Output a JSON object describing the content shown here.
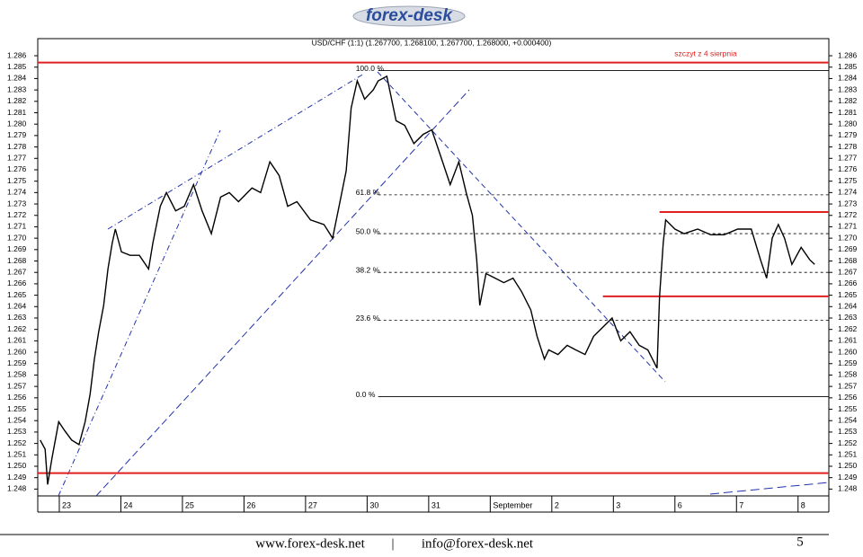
{
  "header": {
    "logo": "forex-desk"
  },
  "chart_data": {
    "type": "line",
    "title": "USD/CHF (1:1) (1.267700, 1.268100, 1.267700, 1.268000, +0.000400)",
    "annotation": "szczyt z 4 sierpnia",
    "color": "#000000",
    "xlim": [
      -0.35,
      12.5
    ],
    "xticks": [
      {
        "value": 0,
        "label": "23"
      },
      {
        "value": 1,
        "label": "24"
      },
      {
        "value": 2,
        "label": "25"
      },
      {
        "value": 3,
        "label": "26"
      },
      {
        "value": 4,
        "label": "27"
      },
      {
        "value": 5,
        "label": "30"
      },
      {
        "value": 6,
        "label": "31"
      },
      {
        "value": 7,
        "label": "September"
      },
      {
        "value": 8,
        "label": "2"
      },
      {
        "value": 9,
        "label": "3"
      },
      {
        "value": 10,
        "label": "6"
      },
      {
        "value": 11,
        "label": "7"
      },
      {
        "value": 12,
        "label": "8"
      }
    ],
    "ylim": [
      1.2474,
      1.2875
    ],
    "yticks": [
      1.248,
      1.249,
      {
        "value": 1.25,
        "label": "1.250"
      },
      1.251,
      1.252,
      1.253,
      1.254,
      1.255,
      1.256,
      1.257,
      1.258,
      1.259,
      {
        "value": 1.26,
        "label": "1.260"
      },
      1.261,
      1.262,
      1.263,
      1.264,
      1.265,
      1.266,
      1.267,
      1.268,
      1.269,
      {
        "value": 1.27,
        "label": "1.270"
      },
      1.271,
      1.272,
      1.273,
      1.274,
      1.275,
      1.276,
      1.277,
      1.278,
      1.279,
      {
        "value": 1.28,
        "label": "1.280"
      },
      1.281,
      1.282,
      1.283,
      1.284,
      1.285,
      1.286
    ],
    "x": [
      -0.31,
      -0.23,
      -0.19,
      -0.12,
      -0.01,
      0.09,
      0.2,
      0.32,
      0.42,
      0.5,
      0.57,
      0.64,
      0.72,
      0.79,
      0.86,
      0.91,
      1.01,
      1.15,
      1.3,
      1.45,
      1.52,
      1.64,
      1.74,
      1.89,
      2.03,
      2.18,
      2.32,
      2.47,
      2.62,
      2.76,
      2.91,
      3.13,
      3.27,
      3.42,
      3.57,
      3.71,
      3.86,
      4.08,
      4.3,
      4.44,
      4.56,
      4.66,
      4.74,
      4.84,
      4.96,
      5.1,
      5.18,
      5.32,
      5.47,
      5.61,
      5.76,
      5.91,
      6.05,
      6.2,
      6.35,
      6.49,
      6.61,
      6.71,
      6.78,
      6.83,
      6.93,
      7.08,
      7.22,
      7.37,
      7.51,
      7.66,
      7.76,
      7.88,
      7.95,
      8.1,
      8.25,
      8.39,
      8.54,
      8.68,
      8.83,
      8.98,
      9.12,
      9.27,
      9.42,
      9.56,
      9.71,
      9.75,
      9.81,
      9.85,
      10.0,
      10.15,
      10.37,
      10.58,
      10.8,
      11.02,
      11.24,
      11.39,
      11.49,
      11.58,
      11.68,
      11.78,
      11.9,
      12.05,
      12.19,
      12.27
    ],
    "values": [
      1.2523,
      1.2515,
      1.2484,
      1.2507,
      1.2539,
      1.2531,
      1.2523,
      1.2519,
      1.2539,
      1.2563,
      1.2594,
      1.2618,
      1.2641,
      1.2673,
      1.2696,
      1.2708,
      1.2688,
      1.2685,
      1.2685,
      1.2673,
      1.2696,
      1.2728,
      1.274,
      1.2724,
      1.2728,
      1.2747,
      1.2724,
      1.2704,
      1.2736,
      1.274,
      1.2732,
      1.2744,
      1.274,
      1.2767,
      1.2755,
      1.2728,
      1.2732,
      1.2716,
      1.2712,
      1.27,
      1.2732,
      1.2759,
      1.2814,
      1.2838,
      1.2822,
      1.283,
      1.2838,
      1.2842,
      1.2803,
      1.2799,
      1.2783,
      1.2791,
      1.2795,
      1.2771,
      1.2747,
      1.2767,
      1.274,
      1.272,
      1.2681,
      1.2641,
      1.2669,
      1.2665,
      1.2661,
      1.2665,
      1.2653,
      1.2637,
      1.2614,
      1.2594,
      1.2602,
      1.2598,
      1.2606,
      1.2602,
      1.2598,
      1.2614,
      1.2622,
      1.263,
      1.261,
      1.2618,
      1.2606,
      1.2602,
      1.2586,
      1.2649,
      1.2696,
      1.2716,
      1.2708,
      1.2704,
      1.2708,
      1.2703,
      1.2703,
      1.2708,
      1.2708,
      1.2681,
      1.2665,
      1.27,
      1.2712,
      1.27,
      1.2677,
      1.2692,
      1.2681,
      1.2677
    ],
    "fib_x_start": 5.18,
    "fib_levels": [
      {
        "value": 1.2847,
        "label": "100.0 %"
      },
      {
        "value": 1.2738,
        "label": "61.8 %"
      },
      {
        "value": 1.2704,
        "label": "50.0 %"
      },
      {
        "value": 1.267,
        "label": "38.2 %"
      },
      {
        "value": 1.2628,
        "label": "23.6 %"
      },
      {
        "value": 1.2561,
        "label": "0.0 %"
      }
    ],
    "levels_color": "#e02020",
    "levels": [
      {
        "value": 1.2854,
        "x_start": -0.35
      },
      {
        "value": 1.2494,
        "x_start": -0.35
      },
      {
        "value": 1.2723,
        "x_start": 9.75
      },
      {
        "value": 1.2649,
        "x_start": 8.83
      }
    ]
  },
  "footer": {
    "site": "www.forex-desk.net",
    "separator": "|",
    "email": "info@forex-desk.net",
    "page": "5"
  }
}
